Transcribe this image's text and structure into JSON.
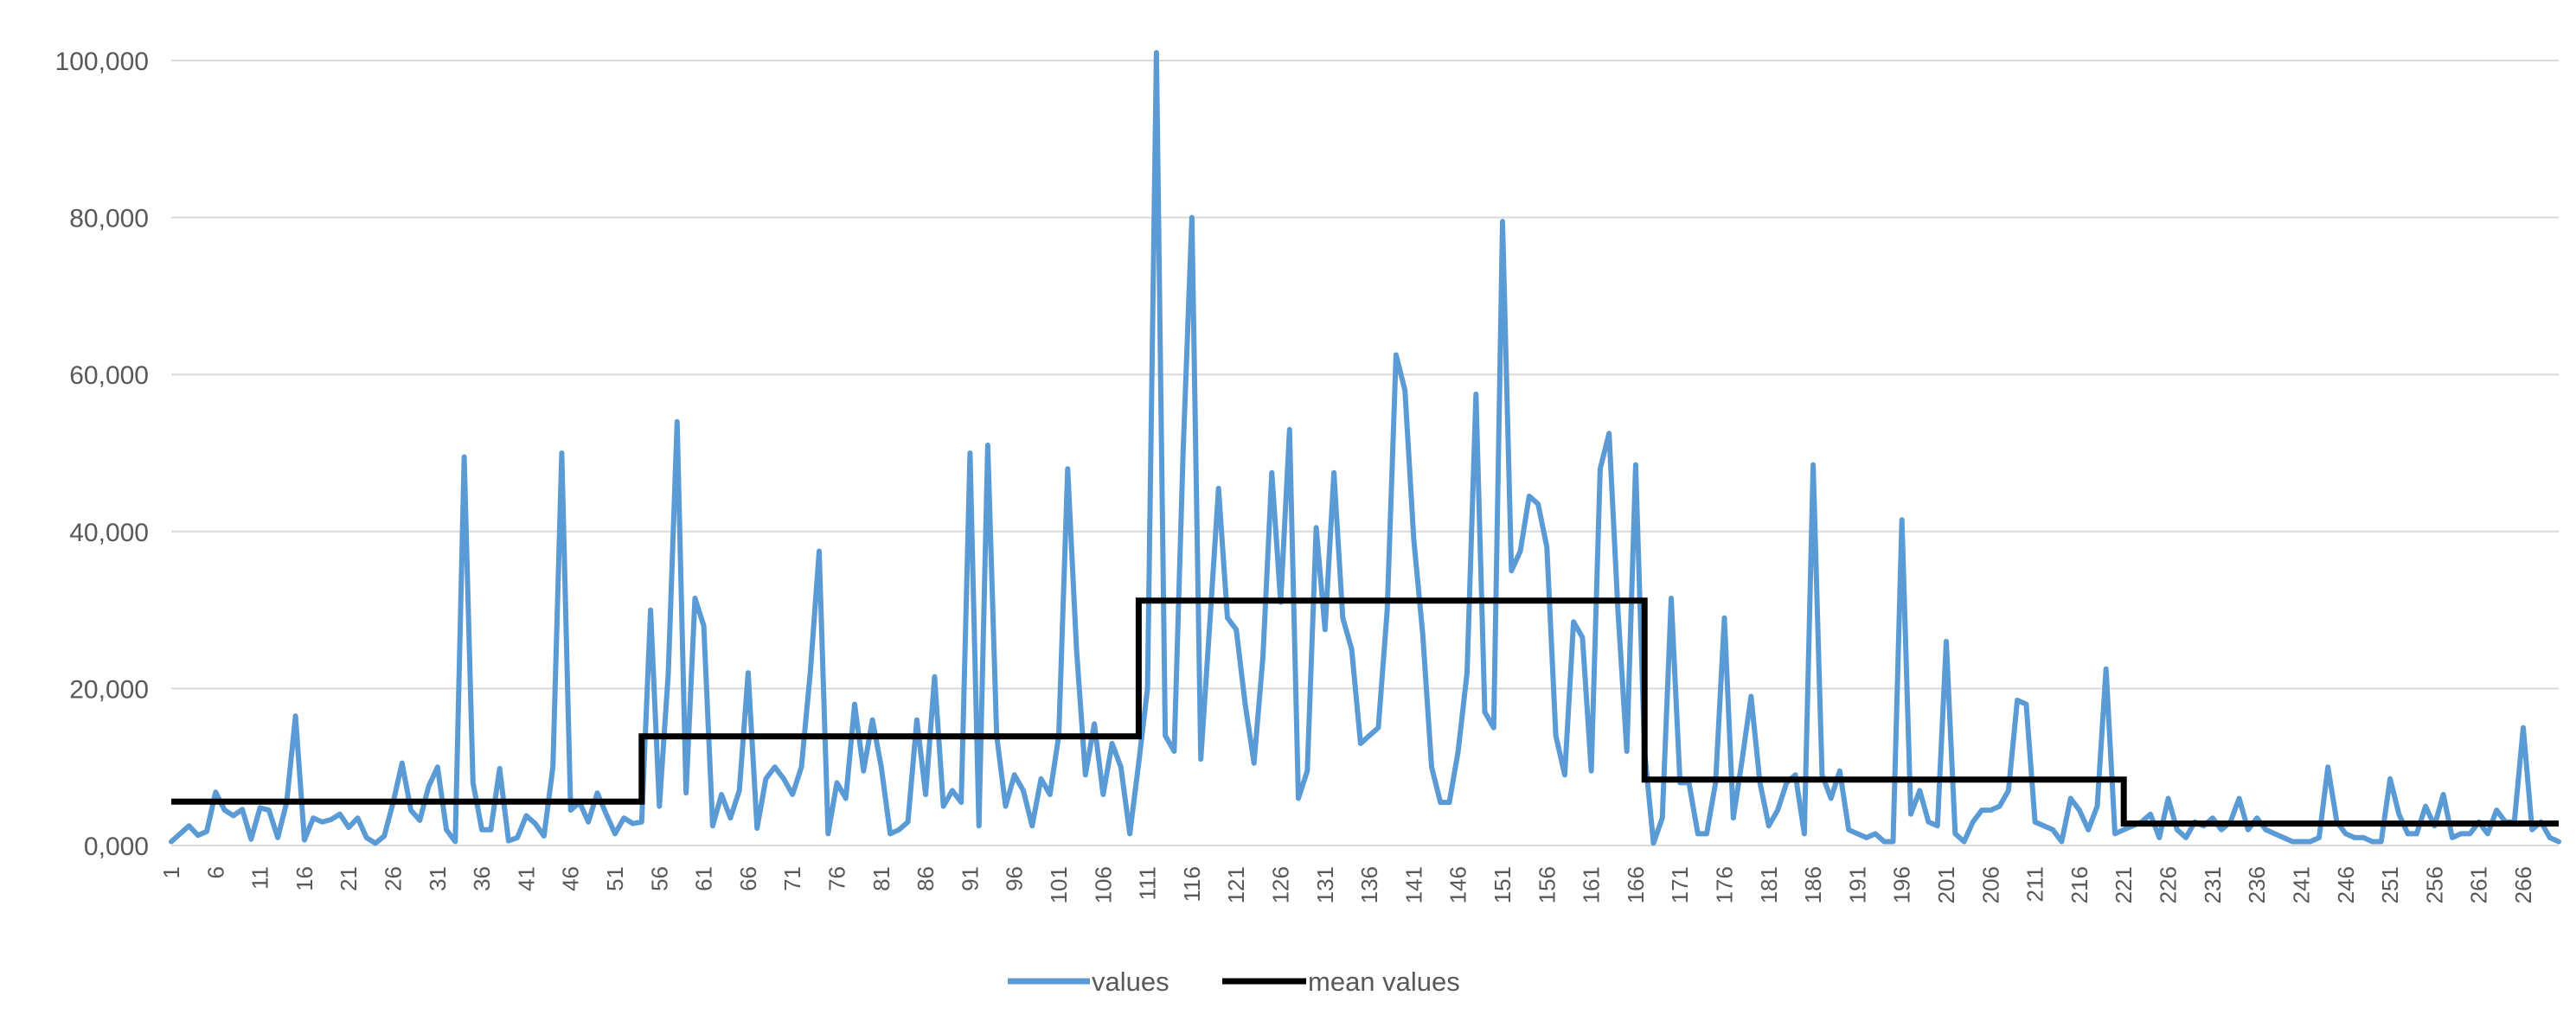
{
  "chart_data": {
    "type": "line",
    "title": "",
    "xlabel": "",
    "ylabel": "",
    "ylim": [
      0,
      100000
    ],
    "y_ticks": [
      0,
      20000,
      40000,
      60000,
      80000,
      100000
    ],
    "y_tick_labels": [
      "0,000",
      "20,000",
      "40,000",
      "60,000",
      "80,000",
      "100,000"
    ],
    "x_range": [
      1,
      270
    ],
    "x_tick_step": 5,
    "grid": "horizontal",
    "legend_placement": "bottom-center",
    "series": [
      {
        "name": "values",
        "color": "#5b9bd5",
        "points": [
          [
            1,
            500
          ],
          [
            2,
            1500
          ],
          [
            3,
            2500
          ],
          [
            4,
            1300
          ],
          [
            5,
            1800
          ],
          [
            6,
            6800
          ],
          [
            7,
            4500
          ],
          [
            8,
            3800
          ],
          [
            9,
            4600
          ],
          [
            10,
            800
          ],
          [
            11,
            4800
          ],
          [
            12,
            4500
          ],
          [
            13,
            1000
          ],
          [
            14,
            5500
          ],
          [
            15,
            16500
          ],
          [
            16,
            700
          ],
          [
            17,
            3500
          ],
          [
            18,
            3000
          ],
          [
            19,
            3300
          ],
          [
            20,
            4000
          ],
          [
            21,
            2300
          ],
          [
            22,
            3500
          ],
          [
            23,
            1000
          ],
          [
            24,
            300
          ],
          [
            25,
            1200
          ],
          [
            26,
            5500
          ],
          [
            27,
            10500
          ],
          [
            28,
            4500
          ],
          [
            29,
            3200
          ],
          [
            30,
            7500
          ],
          [
            31,
            10000
          ],
          [
            32,
            2000
          ],
          [
            33,
            500
          ],
          [
            34,
            49500
          ],
          [
            35,
            8000
          ],
          [
            36,
            2000
          ],
          [
            37,
            2000
          ],
          [
            38,
            9800
          ],
          [
            39,
            600
          ],
          [
            40,
            1000
          ],
          [
            41,
            3800
          ],
          [
            42,
            2800
          ],
          [
            43,
            1200
          ],
          [
            44,
            10000
          ],
          [
            45,
            50000
          ],
          [
            46,
            4500
          ],
          [
            47,
            5500
          ],
          [
            48,
            3000
          ],
          [
            49,
            6700
          ],
          [
            50,
            4000
          ],
          [
            51,
            1500
          ],
          [
            52,
            3500
          ],
          [
            53,
            2800
          ],
          [
            54,
            3000
          ],
          [
            55,
            30000
          ],
          [
            56,
            5000
          ],
          [
            57,
            22000
          ],
          [
            58,
            54000
          ],
          [
            59,
            6700
          ],
          [
            60,
            31500
          ],
          [
            61,
            28000
          ],
          [
            62,
            2500
          ],
          [
            63,
            6500
          ],
          [
            64,
            3500
          ],
          [
            65,
            7000
          ],
          [
            66,
            22000
          ],
          [
            67,
            2200
          ],
          [
            68,
            8500
          ],
          [
            69,
            10000
          ],
          [
            70,
            8500
          ],
          [
            71,
            6500
          ],
          [
            72,
            10000
          ],
          [
            73,
            22000
          ],
          [
            74,
            37500
          ],
          [
            75,
            1500
          ],
          [
            76,
            8000
          ],
          [
            77,
            6000
          ],
          [
            78,
            18000
          ],
          [
            79,
            9500
          ],
          [
            80,
            16000
          ],
          [
            81,
            10000
          ],
          [
            82,
            1500
          ],
          [
            83,
            2000
          ],
          [
            84,
            3000
          ],
          [
            85,
            16000
          ],
          [
            86,
            6500
          ],
          [
            87,
            21500
          ],
          [
            88,
            5000
          ],
          [
            89,
            7000
          ],
          [
            90,
            5500
          ],
          [
            91,
            50000
          ],
          [
            92,
            2500
          ],
          [
            93,
            51000
          ],
          [
            94,
            14000
          ],
          [
            95,
            5000
          ],
          [
            96,
            9000
          ],
          [
            97,
            7000
          ],
          [
            98,
            2500
          ],
          [
            99,
            8500
          ],
          [
            100,
            6500
          ],
          [
            101,
            14000
          ],
          [
            102,
            48000
          ],
          [
            103,
            25000
          ],
          [
            104,
            9000
          ],
          [
            105,
            15500
          ],
          [
            106,
            6500
          ],
          [
            107,
            13000
          ],
          [
            108,
            10000
          ],
          [
            109,
            1500
          ],
          [
            110,
            10500
          ],
          [
            111,
            20000
          ],
          [
            112,
            101000
          ],
          [
            113,
            14000
          ],
          [
            114,
            12000
          ],
          [
            115,
            50000
          ],
          [
            116,
            80000
          ],
          [
            117,
            11000
          ],
          [
            118,
            28000
          ],
          [
            119,
            45500
          ],
          [
            120,
            29000
          ],
          [
            121,
            27500
          ],
          [
            122,
            18000
          ],
          [
            123,
            10500
          ],
          [
            124,
            24000
          ],
          [
            125,
            47500
          ],
          [
            126,
            31000
          ],
          [
            127,
            53000
          ],
          [
            128,
            6000
          ],
          [
            129,
            9500
          ],
          [
            130,
            40500
          ],
          [
            131,
            27500
          ],
          [
            132,
            47500
          ],
          [
            133,
            29000
          ],
          [
            134,
            25000
          ],
          [
            135,
            13000
          ],
          [
            136,
            14000
          ],
          [
            137,
            15000
          ],
          [
            138,
            30000
          ],
          [
            139,
            62500
          ],
          [
            140,
            58000
          ],
          [
            141,
            39000
          ],
          [
            142,
            27000
          ],
          [
            143,
            10000
          ],
          [
            144,
            5500
          ],
          [
            145,
            5500
          ],
          [
            146,
            12000
          ],
          [
            147,
            22000
          ],
          [
            148,
            57500
          ],
          [
            149,
            17000
          ],
          [
            150,
            15000
          ],
          [
            151,
            79500
          ],
          [
            152,
            35000
          ],
          [
            153,
            37500
          ],
          [
            154,
            44500
          ],
          [
            155,
            43500
          ],
          [
            156,
            38000
          ],
          [
            157,
            14000
          ],
          [
            158,
            9000
          ],
          [
            159,
            28500
          ],
          [
            160,
            26500
          ],
          [
            161,
            9500
          ],
          [
            162,
            48000
          ],
          [
            163,
            52500
          ],
          [
            164,
            30000
          ],
          [
            165,
            12000
          ],
          [
            166,
            48500
          ],
          [
            167,
            12000
          ],
          [
            168,
            300
          ],
          [
            169,
            3500
          ],
          [
            170,
            31500
          ],
          [
            171,
            8000
          ],
          [
            172,
            8000
          ],
          [
            173,
            1500
          ],
          [
            174,
            1500
          ],
          [
            175,
            8000
          ],
          [
            176,
            29000
          ],
          [
            177,
            3500
          ],
          [
            178,
            11000
          ],
          [
            179,
            19000
          ],
          [
            180,
            8000
          ],
          [
            181,
            2500
          ],
          [
            182,
            4500
          ],
          [
            183,
            8000
          ],
          [
            184,
            9000
          ],
          [
            185,
            1500
          ],
          [
            186,
            48500
          ],
          [
            187,
            9000
          ],
          [
            188,
            6000
          ],
          [
            189,
            9500
          ],
          [
            190,
            2000
          ],
          [
            191,
            1500
          ],
          [
            192,
            1000
          ],
          [
            193,
            1500
          ],
          [
            194,
            500
          ],
          [
            195,
            500
          ],
          [
            196,
            41500
          ],
          [
            197,
            4000
          ],
          [
            198,
            7000
          ],
          [
            199,
            3000
          ],
          [
            200,
            2500
          ],
          [
            201,
            26000
          ],
          [
            202,
            1500
          ],
          [
            203,
            500
          ],
          [
            204,
            3000
          ],
          [
            205,
            4500
          ],
          [
            206,
            4500
          ],
          [
            207,
            5000
          ],
          [
            208,
            7000
          ],
          [
            209,
            18500
          ],
          [
            210,
            18000
          ],
          [
            211,
            3000
          ],
          [
            212,
            2500
          ],
          [
            213,
            2000
          ],
          [
            214,
            500
          ],
          [
            215,
            6000
          ],
          [
            216,
            4500
          ],
          [
            217,
            2000
          ],
          [
            218,
            5000
          ],
          [
            219,
            22500
          ],
          [
            220,
            1500
          ],
          [
            221,
            2000
          ],
          [
            222,
            2500
          ],
          [
            223,
            3000
          ],
          [
            224,
            4000
          ],
          [
            225,
            1000
          ],
          [
            226,
            6000
          ],
          [
            227,
            2000
          ],
          [
            228,
            1000
          ],
          [
            229,
            3000
          ],
          [
            230,
            2500
          ],
          [
            231,
            3500
          ],
          [
            232,
            2000
          ],
          [
            233,
            3000
          ],
          [
            234,
            6000
          ],
          [
            235,
            2000
          ],
          [
            236,
            3500
          ],
          [
            237,
            2000
          ],
          [
            238,
            1500
          ],
          [
            239,
            1000
          ],
          [
            240,
            500
          ],
          [
            241,
            500
          ],
          [
            242,
            500
          ],
          [
            243,
            1000
          ],
          [
            244,
            10000
          ],
          [
            245,
            3000
          ],
          [
            246,
            1500
          ],
          [
            247,
            1000
          ],
          [
            248,
            1000
          ],
          [
            249,
            500
          ],
          [
            250,
            500
          ],
          [
            251,
            8500
          ],
          [
            252,
            4000
          ],
          [
            253,
            1500
          ],
          [
            254,
            1500
          ],
          [
            255,
            5000
          ],
          [
            256,
            2500
          ],
          [
            257,
            6500
          ],
          [
            258,
            1000
          ],
          [
            259,
            1500
          ],
          [
            260,
            1500
          ],
          [
            261,
            3000
          ],
          [
            262,
            1500
          ],
          [
            263,
            4500
          ],
          [
            264,
            3000
          ],
          [
            265,
            3000
          ],
          [
            266,
            15000
          ],
          [
            267,
            2000
          ],
          [
            268,
            3000
          ],
          [
            269,
            1000
          ],
          [
            270,
            500
          ]
        ]
      },
      {
        "name": "mean values",
        "color": "#000000",
        "segments": [
          {
            "x_start": 1,
            "x_end": 54,
            "value": 5600
          },
          {
            "x_start": 54,
            "x_end": 110,
            "value": 13900
          },
          {
            "x_start": 110,
            "x_end": 167,
            "value": 31200
          },
          {
            "x_start": 167,
            "x_end": 221,
            "value": 8400
          },
          {
            "x_start": 221,
            "x_end": 270,
            "value": 2800
          }
        ]
      }
    ],
    "legend": [
      {
        "name": "values",
        "color": "#5b9bd5"
      },
      {
        "name": "mean values",
        "color": "#000000"
      }
    ]
  }
}
